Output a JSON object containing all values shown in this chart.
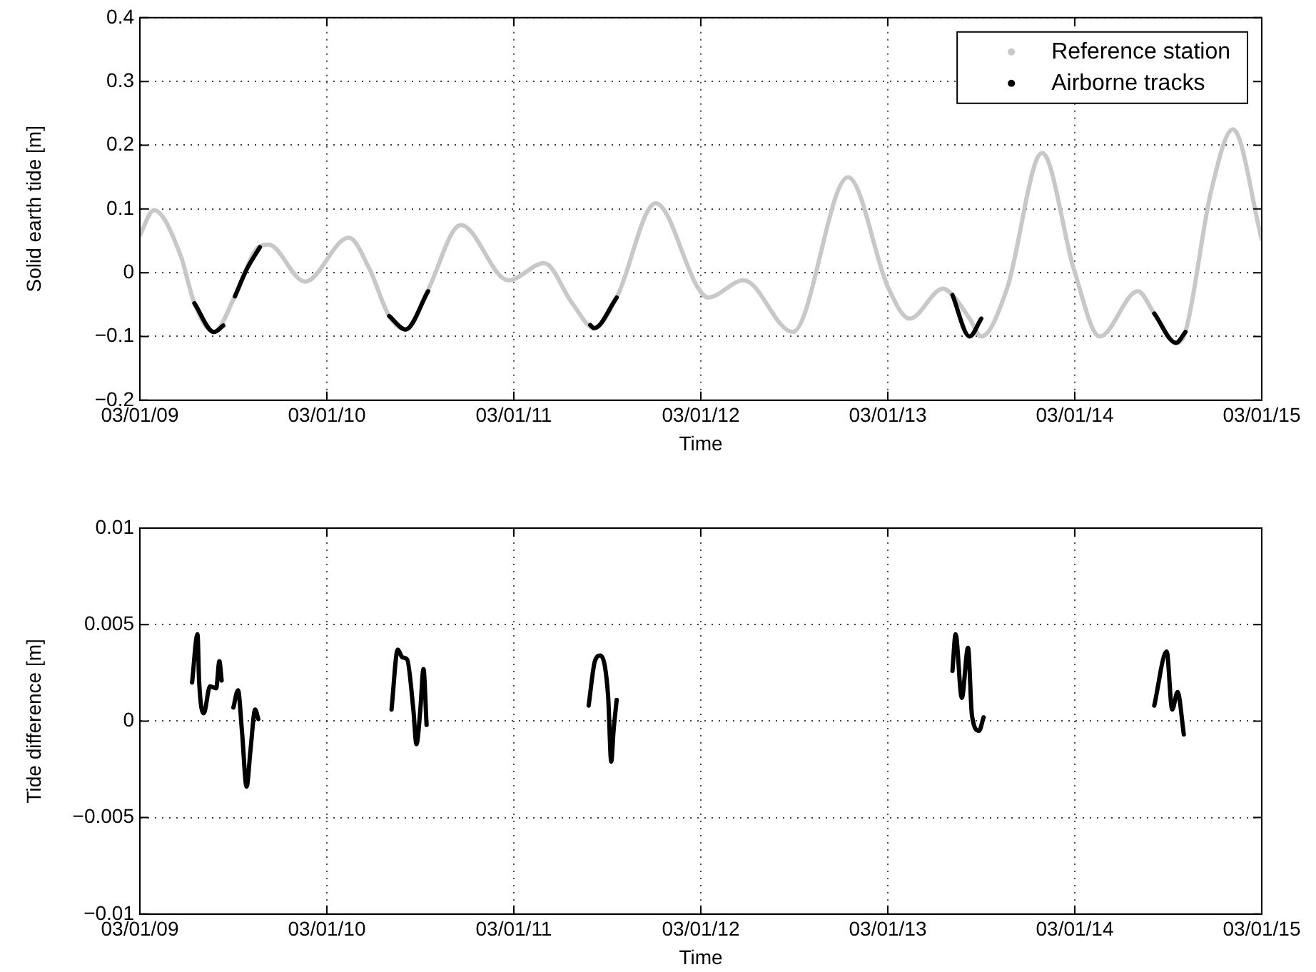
{
  "chart_data": [
    {
      "type": "line",
      "xlabel": "Time",
      "ylabel": "Solid earth tide [m]",
      "ylim": [
        -0.2,
        0.4
      ],
      "yticks": [
        -0.2,
        -0.1,
        0,
        0.1,
        0.2,
        0.3,
        0.4
      ],
      "xlim": [
        "--01-09",
        "--01-15"
      ],
      "xticks": [
        {
          "value": "--01-09",
          "label": "03/01/09"
        },
        {
          "value": "--01-10",
          "label": "03/01/10"
        },
        {
          "value": "--01-11",
          "label": "03/01/11"
        },
        {
          "value": "--01-12",
          "label": "03/01/12"
        },
        {
          "value": "--01-13",
          "label": "03/01/13"
        },
        {
          "value": "--01-14",
          "label": "03/01/14"
        },
        {
          "value": "--01-15",
          "label": "03/01/15"
        }
      ],
      "grid": true,
      "legend": "top right",
      "series": [
        {
          "name": "Reference station",
          "color": "#c8c8c8",
          "x": [
            "--01-09T00:00",
            "--01-09T01:48",
            "--01-09T05:12",
            "--01-09T07:00",
            "--01-09T09:30",
            "--01-09T12:12",
            "--01-09T15:12",
            "--01-09T16:30",
            "--01-09T21:12",
            "--01-10T02:48",
            "--01-10T05:30",
            "--01-10T08:00",
            "--01-10T10:06",
            "--01-10T12:54",
            "--01-10T17:12",
            "--01-10T23:18",
            "--01-11T03:54",
            "--01-11T07:30",
            "--01-11T10:18",
            "--01-11T13:12",
            "--01-11T18:12",
            "--01-11T23:42",
            "--01-12T00:54",
            "--01-12T05:30",
            "--01-12T11:48",
            "--01-12T18:54",
            "--01-13T00:06",
            "--01-13T02:48",
            "--01-13T07:06",
            "--01-13T08:18",
            "--01-13T10:30",
            "--01-13T12:00",
            "--01-13T15:18",
            "--01-13T19:48",
            "--01-13T23:54",
            "--01-14T03:12",
            "--01-14T08:06",
            "--01-14T10:12",
            "--01-14T13:00",
            "--01-14T14:12",
            "--01-14T17:30",
            "--01-14T20:18",
            "--01-15T00:00"
          ],
          "values": [
            0.059,
            0.098,
            0.028,
            -0.048,
            -0.093,
            -0.037,
            0.04,
            0.044,
            -0.014,
            0.055,
            0.005,
            -0.068,
            -0.089,
            -0.029,
            0.075,
            -0.012,
            0.015,
            -0.048,
            -0.087,
            -0.039,
            0.109,
            -0.025,
            -0.039,
            -0.012,
            -0.093,
            0.15,
            -0.025,
            -0.072,
            -0.025,
            -0.035,
            -0.072,
            -0.1,
            -0.025,
            0.188,
            0.005,
            -0.1,
            -0.029,
            -0.064,
            -0.11,
            -0.093,
            0.128,
            0.225,
            0.052
          ]
        },
        {
          "name": "Airborne tracks",
          "color": "#000000",
          "x": [
            "--01-09T07:00",
            "--01-09T09:30",
            "--01-09T10:42",
            "--01-09T11:30",
            "--01-09T12:12",
            "--01-09T13:42",
            "--01-09T15:24",
            "--01-10T00:00",
            "--01-10T08:00",
            "--01-10T10:06",
            "--01-10T13:00",
            "--01-11T00:00",
            "--01-11T09:48",
            "--01-11T10:18",
            "--01-11T13:12",
            "--01-12T00:00",
            "--01-13T08:18",
            "--01-13T10:30",
            "--01-13T12:00",
            "--01-14T00:00",
            "--01-14T10:12",
            "--01-14T13:00",
            "--01-14T14:12"
          ],
          "values": [
            -0.048,
            -0.093,
            -0.083,
            null,
            -0.037,
            0.005,
            0.04,
            null,
            -0.068,
            -0.089,
            -0.029,
            null,
            -0.082,
            -0.087,
            -0.039,
            null,
            -0.035,
            -0.1,
            -0.072,
            null,
            -0.064,
            -0.11,
            -0.093
          ]
        }
      ]
    },
    {
      "type": "line",
      "xlabel": "Time",
      "ylabel": "Tide difference [m]",
      "ylim": [
        -0.01,
        0.01
      ],
      "yticks": [
        -0.01,
        -0.005,
        0,
        0.005,
        0.01
      ],
      "xlim": [
        "--01-09",
        "--01-15"
      ],
      "xticks": [
        {
          "value": "--01-09",
          "label": "03/01/09"
        },
        {
          "value": "--01-10",
          "label": "03/01/10"
        },
        {
          "value": "--01-11",
          "label": "03/01/11"
        },
        {
          "value": "--01-12",
          "label": "03/01/12"
        },
        {
          "value": "--01-13",
          "label": "03/01/13"
        },
        {
          "value": "--01-14",
          "label": "03/01/14"
        },
        {
          "value": "--01-15",
          "label": "03/01/15"
        }
      ],
      "grid": true,
      "series": [
        {
          "color": "#000000",
          "x": [
            "--01-09T06:42",
            "--01-09T07:24",
            "--01-09T07:36",
            "--01-09T08:12",
            "--01-09T09:00",
            "--01-09T09:48",
            "--01-09T10:12",
            "--01-09T10:30",
            "--01-09T11:30",
            "--01-09T12:00",
            "--01-09T12:36",
            "--01-09T13:06",
            "--01-09T13:42",
            "--01-09T14:12",
            "--01-09T14:48",
            "--01-09T15:12",
            "--01-10T00:00",
            "--01-10T08:18",
            "--01-10T09:06",
            "--01-10T09:42",
            "--01-10T10:18",
            "--01-10T11:06",
            "--01-10T11:30",
            "--01-10T12:00",
            "--01-10T12:24",
            "--01-10T12:48",
            "--01-11T00:00",
            "--01-11T09:36",
            "--01-11T10:24",
            "--01-11T11:06",
            "--01-11T12:06",
            "--01-11T12:30",
            "--01-11T12:48",
            "--01-11T13:12",
            "--01-12T00:00",
            "--01-13T08:18",
            "--01-13T08:42",
            "--01-13T09:30",
            "--01-13T10:18",
            "--01-13T10:48",
            "--01-13T11:42",
            "--01-13T12:18",
            "--01-14T00:00",
            "--01-14T10:12",
            "--01-14T11:48",
            "--01-14T12:30",
            "--01-14T13:12",
            "--01-14T14:00"
          ],
          "values": [
            0.002,
            0.0045,
            0.0021,
            0.0004,
            0.0018,
            0.0017,
            0.0031,
            0.0021,
            null,
            0.0007,
            0.0016,
            -0.0005,
            -0.0034,
            -0.0015,
            0.0006,
            0.0001,
            null,
            0.0006,
            0.0037,
            0.0033,
            0.0032,
            0.0006,
            -0.0012,
            0.0006,
            0.0027,
            -0.0002,
            null,
            0.0008,
            0.0031,
            0.0034,
            0.0013,
            -0.0021,
            -0.0005,
            0.0011,
            null,
            0.0026,
            0.0045,
            0.0012,
            0.0038,
            0.0003,
            -0.0005,
            0.0002,
            null,
            0.0008,
            0.0036,
            0.0006,
            0.0015,
            -0.0007
          ]
        }
      ]
    }
  ]
}
